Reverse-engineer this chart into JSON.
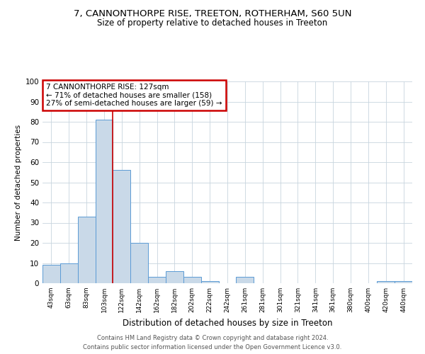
{
  "title": "7, CANNONTHORPE RISE, TREETON, ROTHERHAM, S60 5UN",
  "subtitle": "Size of property relative to detached houses in Treeton",
  "xlabel": "Distribution of detached houses by size in Treeton",
  "ylabel": "Number of detached properties",
  "categories": [
    "43sqm",
    "63sqm",
    "83sqm",
    "103sqm",
    "122sqm",
    "142sqm",
    "162sqm",
    "182sqm",
    "202sqm",
    "222sqm",
    "242sqm",
    "261sqm",
    "281sqm",
    "301sqm",
    "321sqm",
    "341sqm",
    "361sqm",
    "380sqm",
    "400sqm",
    "420sqm",
    "440sqm"
  ],
  "values": [
    9,
    10,
    33,
    81,
    56,
    20,
    3,
    6,
    3,
    1,
    0,
    3,
    0,
    0,
    0,
    0,
    0,
    0,
    0,
    1,
    1
  ],
  "bar_color": "#c9d9e8",
  "bar_edge_color": "#5b9bd5",
  "red_line_x": 3.5,
  "annotation_text": "7 CANNONTHORPE RISE: 127sqm\n← 71% of detached houses are smaller (158)\n27% of semi-detached houses are larger (59) →",
  "annotation_box_color": "#ffffff",
  "annotation_box_edge_color": "#cc0000",
  "footer1": "Contains HM Land Registry data © Crown copyright and database right 2024.",
  "footer2": "Contains public sector information licensed under the Open Government Licence v3.0.",
  "ylim": [
    0,
    100
  ],
  "background_color": "#ffffff",
  "grid_color": "#c8d4de",
  "title_fontsize": 9.5,
  "subtitle_fontsize": 8.5
}
